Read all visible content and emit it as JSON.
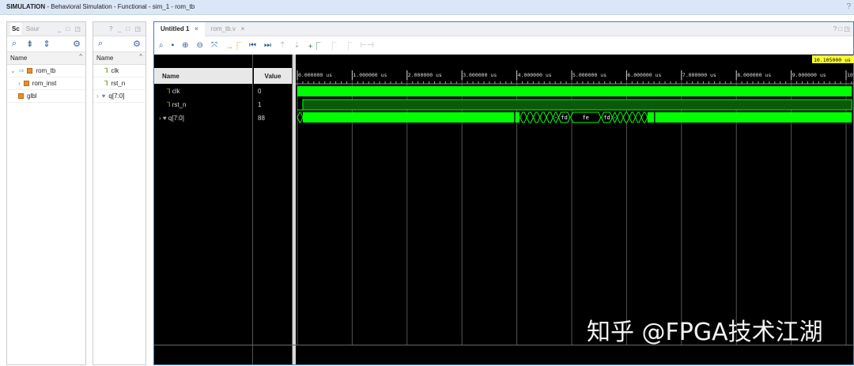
{
  "title": {
    "app": "SIMULATION",
    "rest": " - Behavioral Simulation - Functional - sim_1 - rom_tb",
    "help": "?"
  },
  "scope_panel": {
    "tabs": [
      "Sc",
      "Sour"
    ],
    "winctl": "_ □ ◳",
    "col": "Name",
    "items": [
      {
        "label": "rom_tb",
        "expander": "⌄"
      },
      {
        "label": "rom_inst",
        "expander": "›"
      },
      {
        "label": "glbl",
        "expander": ""
      }
    ]
  },
  "objects_panel": {
    "winctl": "? _ □ ◳",
    "col": "Name",
    "items": [
      {
        "label": "clk"
      },
      {
        "label": "rst_n"
      },
      {
        "label": "q[7:0]"
      }
    ]
  },
  "main": {
    "tabs": [
      "Untitled 1",
      "rom_tb.v"
    ],
    "winctl": "? □ ◳",
    "toolbar": [
      "search",
      "save",
      "zoom-in",
      "zoom-out",
      "zoom-fit",
      "go-to-cursor",
      "go-to-start",
      "go-to-end",
      "prev-transition",
      "next-transition",
      "add-marker",
      "prev-marker",
      "next-marker",
      "swap-cursors"
    ],
    "name_header": "Name",
    "value_header": "Value",
    "cursor_time": "10.105000 us",
    "time_ticks": [
      "0.000000 us",
      "1.000000 us",
      "2.000000 us",
      "3.000000 us",
      "4.000000 us",
      "5.000000 us",
      "6.000000 us",
      "7.000000 us",
      "8.000000 us",
      "9.000000 us",
      "10"
    ],
    "signals": [
      {
        "name": "clk",
        "value": "0",
        "type": "bit"
      },
      {
        "name": "rst_n",
        "value": "1",
        "type": "bit"
      },
      {
        "name": "q[7:0]",
        "value": "88",
        "type": "bus"
      }
    ],
    "wave_color": "#00ff00",
    "q_segments": [
      [
        0,
        0.1,
        "",
        0
      ],
      [
        0.1,
        3.95,
        "",
        1
      ],
      [
        3.97,
        4.05,
        "",
        1
      ],
      [
        4.06,
        4.18,
        "",
        0
      ],
      [
        4.18,
        4.3,
        "",
        0
      ],
      [
        4.3,
        4.42,
        "",
        0
      ],
      [
        4.42,
        4.54,
        "",
        0
      ],
      [
        4.54,
        4.66,
        "",
        0
      ],
      [
        4.66,
        4.76,
        "-",
        0
      ],
      [
        4.76,
        4.97,
        "fd",
        0
      ],
      [
        4.98,
        5.53,
        "fe",
        0
      ],
      [
        5.54,
        5.74,
        "fd",
        0
      ],
      [
        5.74,
        5.83,
        "-",
        0
      ],
      [
        5.83,
        5.94,
        "",
        0
      ],
      [
        5.94,
        6.05,
        "",
        0
      ],
      [
        6.05,
        6.16,
        "",
        0
      ],
      [
        6.16,
        6.27,
        "",
        0
      ],
      [
        6.27,
        6.38,
        "",
        0
      ],
      [
        6.38,
        6.5,
        "",
        1
      ],
      [
        6.52,
        10.105,
        "",
        1
      ]
    ]
  },
  "watermark": "知乎 @FPGA技术江湖"
}
